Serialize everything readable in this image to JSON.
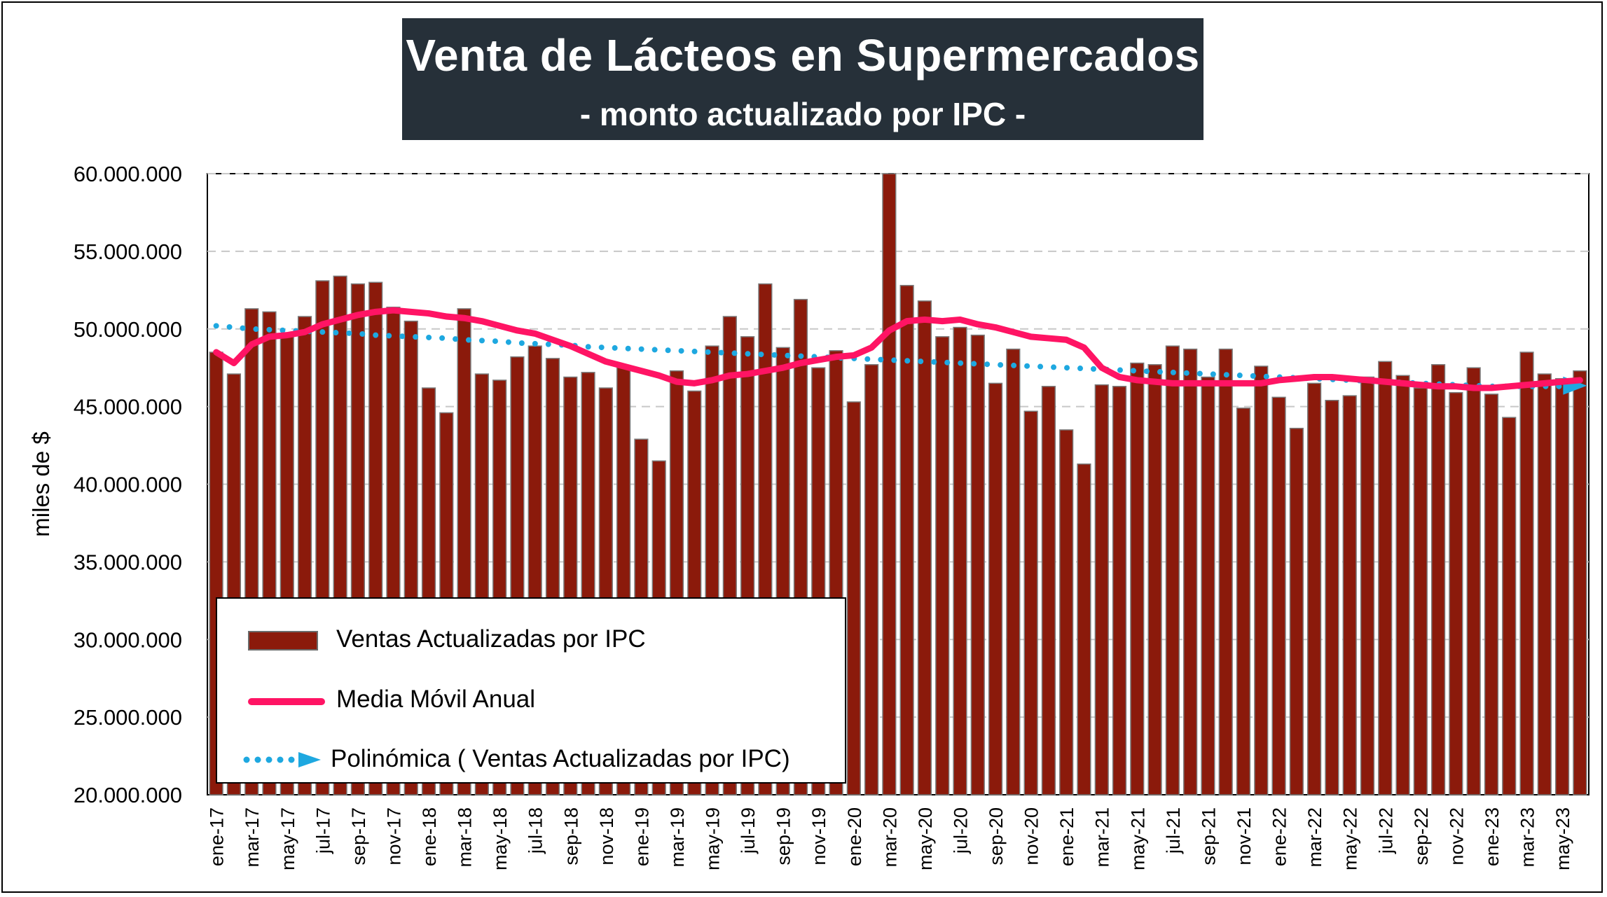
{
  "title": "Venta de Lácteos en Supermercados",
  "subtitle": "- monto actualizado por IPC -",
  "chart_data": {
    "type": "bar",
    "ylabel": "miles de $",
    "xlabel": "",
    "ylim": [
      20000000,
      60000000
    ],
    "yticks": [
      "20.000.000",
      "25.000.000",
      "30.000.000",
      "35.000.000",
      "40.000.000",
      "45.000.000",
      "50.000.000",
      "55.000.000",
      "60.000.000"
    ],
    "grid": "horizontal dashed",
    "legend_position": "bottom-left",
    "xtick_labels": [
      "ene-17",
      "mar-17",
      "may-17",
      "jul-17",
      "sep-17",
      "nov-17",
      "ene-18",
      "mar-18",
      "may-18",
      "jul-18",
      "sep-18",
      "nov-18",
      "ene-19",
      "mar-19",
      "may-19",
      "jul-19",
      "sep-19",
      "nov-19",
      "ene-20",
      "mar-20",
      "may-20",
      "jul-20",
      "sep-20",
      "nov-20",
      "ene-21",
      "mar-21",
      "may-21",
      "jul-21",
      "sep-21",
      "nov-21",
      "ene-22",
      "mar-22",
      "may-22",
      "jul-22",
      "sep-22",
      "nov-22",
      "ene-23",
      "mar-23",
      "may-23"
    ],
    "series": [
      {
        "name": "Ventas Actualizadas por IPC",
        "kind": "bar",
        "color": "#8B1A0B",
        "values": [
          48500000,
          47100000,
          51300000,
          51100000,
          49700000,
          50800000,
          53100000,
          53400000,
          52900000,
          53000000,
          51400000,
          50500000,
          46200000,
          44600000,
          51300000,
          47100000,
          46700000,
          48200000,
          48900000,
          48100000,
          46900000,
          47200000,
          46200000,
          47600000,
          42900000,
          41500000,
          47300000,
          46000000,
          48900000,
          50800000,
          49500000,
          52900000,
          48800000,
          51900000,
          47500000,
          48600000,
          45300000,
          47700000,
          60000000,
          52800000,
          51800000,
          49500000,
          50100000,
          49600000,
          46500000,
          48700000,
          44700000,
          46300000,
          43500000,
          41300000,
          46400000,
          46300000,
          47800000,
          47700000,
          48900000,
          48700000,
          46900000,
          48700000,
          44900000,
          47600000,
          45600000,
          43600000,
          46500000,
          45400000,
          45700000,
          46900000,
          47900000,
          47000000,
          46200000,
          47700000,
          45900000,
          47500000,
          45800000,
          44300000,
          48500000,
          47100000,
          46800000,
          47300000
        ]
      },
      {
        "name": "Media Móvil Anual",
        "kind": "line",
        "color": "#FF1464",
        "values": [
          48500000,
          47800000,
          49000000,
          49500000,
          49600000,
          49800000,
          50300000,
          50600000,
          50900000,
          51100000,
          51200000,
          51100000,
          51000000,
          50800000,
          50700000,
          50500000,
          50200000,
          49900000,
          49700000,
          49300000,
          48900000,
          48400000,
          47900000,
          47600000,
          47300000,
          47000000,
          46600000,
          46500000,
          46700000,
          47000000,
          47100000,
          47300000,
          47500000,
          47800000,
          48000000,
          48200000,
          48300000,
          48800000,
          49900000,
          50500000,
          50600000,
          50500000,
          50600000,
          50300000,
          50100000,
          49800000,
          49500000,
          49400000,
          49300000,
          48800000,
          47500000,
          46900000,
          46700000,
          46600000,
          46500000,
          46500000,
          46500000,
          46500000,
          46500000,
          46500000,
          46700000,
          46800000,
          46900000,
          46900000,
          46800000,
          46700000,
          46600000,
          46500000,
          46400000,
          46300000,
          46300000,
          46200000,
          46200000,
          46300000,
          46400000,
          46500000,
          46600000,
          46700000
        ]
      },
      {
        "name": "Polinómica ( Ventas Actualizadas por IPC)",
        "kind": "trend",
        "color": "#1EA8E0",
        "values": [
          50200000,
          50100000,
          50000000,
          49950000,
          49900000,
          49850000,
          49800000,
          49750000,
          49700000,
          49600000,
          49550000,
          49500000,
          49450000,
          49400000,
          49300000,
          49250000,
          49200000,
          49100000,
          49050000,
          49000000,
          48950000,
          48850000,
          48800000,
          48750000,
          48700000,
          48650000,
          48600000,
          48550000,
          48500000,
          48450000,
          48400000,
          48350000,
          48300000,
          48250000,
          48200000,
          48150000,
          48100000,
          48050000,
          48000000,
          47950000,
          47900000,
          47850000,
          47800000,
          47750000,
          47700000,
          47650000,
          47600000,
          47550000,
          47500000,
          47450000,
          47400000,
          47350000,
          47300000,
          47250000,
          47200000,
          47150000,
          47100000,
          47050000,
          47000000,
          46950000,
          46900000,
          46850000,
          46800000,
          46750000,
          46700000,
          46650000,
          46600000,
          46550000,
          46500000,
          46450000,
          46400000,
          46350000,
          46300000,
          46300000,
          46300000,
          46300000,
          46300000,
          46350000
        ]
      }
    ]
  }
}
